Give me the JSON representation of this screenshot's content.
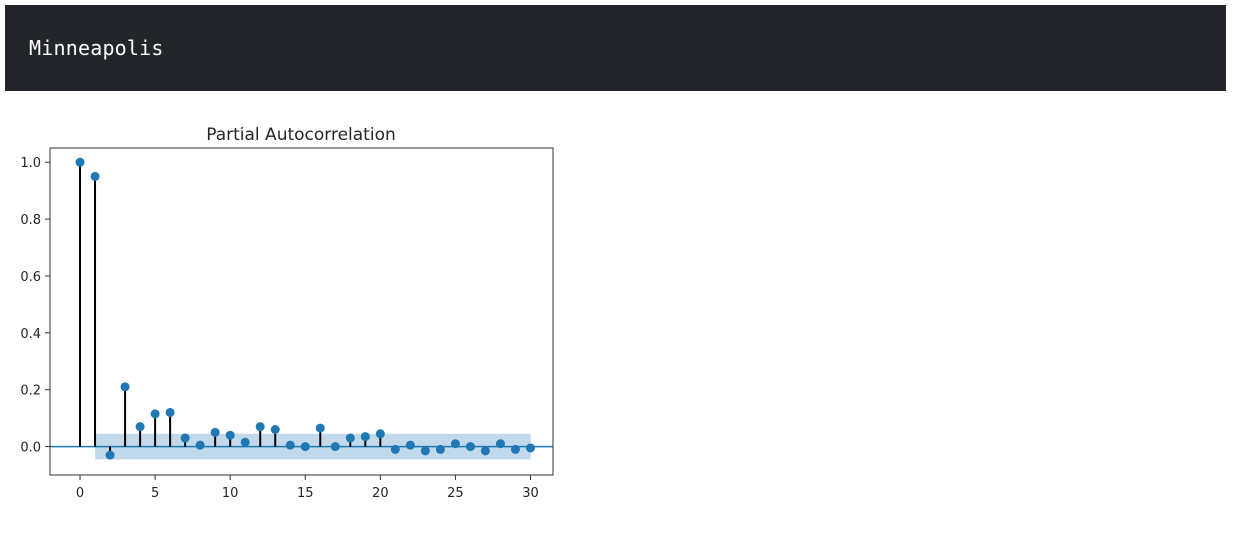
{
  "output_cell": {
    "text": "Minneapolis"
  },
  "chart_data": {
    "type": "stem",
    "title": "Partial Autocorrelation",
    "xlabel": "",
    "ylabel": "",
    "xlim": [
      -2,
      31.5
    ],
    "ylim": [
      -0.1,
      1.05
    ],
    "xticks": [
      0,
      5,
      10,
      15,
      20,
      25,
      30
    ],
    "yticks": [
      0.0,
      0.2,
      0.4,
      0.6,
      0.8,
      1.0
    ],
    "xtick_labels": [
      "0",
      "5",
      "10",
      "15",
      "20",
      "25",
      "30"
    ],
    "ytick_labels": [
      "0.0",
      "0.2",
      "0.4",
      "0.6",
      "0.8",
      "1.0"
    ],
    "lags": [
      0,
      1,
      2,
      3,
      4,
      5,
      6,
      7,
      8,
      9,
      10,
      11,
      12,
      13,
      14,
      15,
      16,
      17,
      18,
      19,
      20,
      21,
      22,
      23,
      24,
      25,
      26,
      27,
      28,
      29,
      30
    ],
    "values": [
      1.0,
      0.95,
      -0.03,
      0.21,
      0.07,
      0.115,
      0.12,
      0.03,
      0.005,
      0.05,
      0.04,
      0.015,
      0.07,
      0.06,
      0.005,
      0.0,
      0.065,
      0.0,
      0.03,
      0.035,
      0.045,
      -0.01,
      0.005,
      -0.015,
      -0.01,
      0.01,
      0.0,
      -0.015,
      0.01,
      -0.01,
      -0.005
    ],
    "confidence_band": {
      "from_lag": 1,
      "to_lag": 30,
      "upper": 0.045,
      "lower": -0.045
    },
    "grid": false,
    "colors": {
      "marker": "#1f77b4",
      "stem": "#000000",
      "band": "#1f77b4",
      "zero_line": "#1f77b4"
    }
  }
}
